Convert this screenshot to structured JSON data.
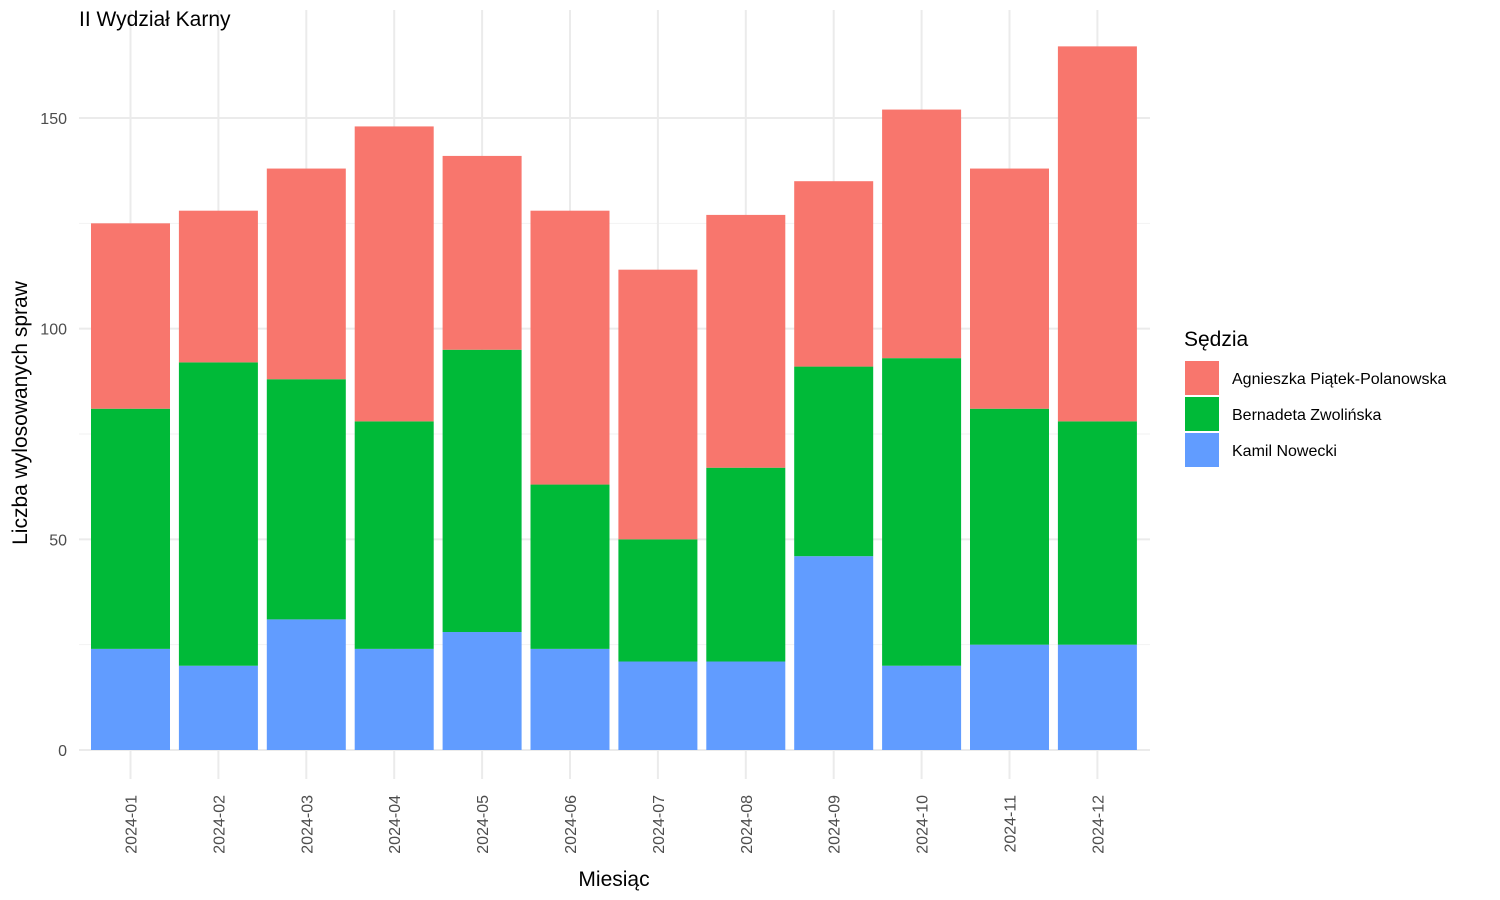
{
  "chart_data": {
    "type": "bar",
    "stacked": true,
    "title": "II Wydział Karny",
    "xlabel": "Miesiąc",
    "ylabel": "Liczba wylosowanych spraw",
    "categories": [
      "2024-01",
      "2024-02",
      "2024-03",
      "2024-04",
      "2024-05",
      "2024-06",
      "2024-07",
      "2024-08",
      "2024-09",
      "2024-10",
      "2024-11",
      "2024-12"
    ],
    "yticks": [
      0,
      50,
      100,
      150
    ],
    "ylim": [
      0,
      170
    ],
    "grid": true,
    "legend_title": "Sędzia",
    "legend_position": "right",
    "series": [
      {
        "name": "Kamil Nowecki",
        "color": "#619CFF",
        "values": [
          24,
          20,
          31,
          24,
          28,
          24,
          21,
          21,
          46,
          20,
          25,
          25
        ]
      },
      {
        "name": "Bernadeta Zwolińska",
        "color": "#00BA38",
        "values": [
          57,
          72,
          57,
          54,
          67,
          39,
          29,
          46,
          45,
          73,
          56,
          53
        ]
      },
      {
        "name": "Agnieszka Piątek-Polanowska",
        "color": "#F8766D",
        "values": [
          44,
          36,
          50,
          70,
          46,
          65,
          64,
          60,
          44,
          59,
          57,
          89
        ]
      }
    ],
    "legend_order": [
      "Agnieszka Piątek-Polanowska",
      "Bernadeta Zwolińska",
      "Kamil Nowecki"
    ]
  }
}
